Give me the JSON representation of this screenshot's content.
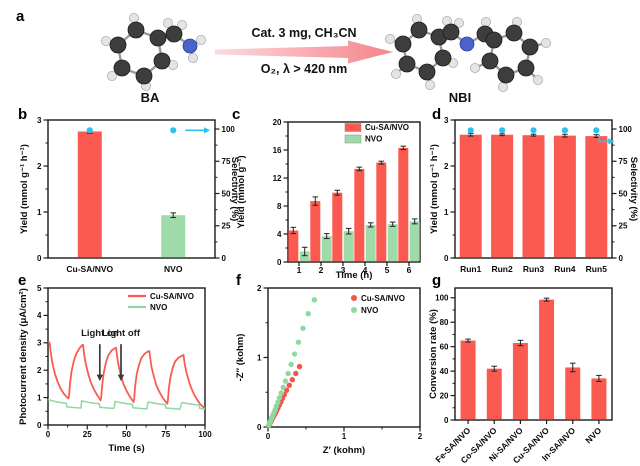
{
  "reaction": {
    "label": "a",
    "reactant_label": "BA",
    "product_label": "NBI",
    "conditions_top": "Cat. 3 mg,  CH₃CN",
    "conditions_bottom": "O₂, λ > 420 nm"
  },
  "colors": {
    "bar_red": "#fa5a50",
    "bar_green": "#9fdaa9",
    "dot_cyan": "#29c3ee",
    "line_red": "#f95b50",
    "line_green": "#90d8a0",
    "scatter_red": "#f2554b",
    "scatter_green": "#8ed8a2"
  },
  "chart_data": [
    {
      "panel": "b",
      "type": "bar",
      "categories": [
        "Cu-SA/NVO",
        "NVO"
      ],
      "series": [
        {
          "name": "Yield",
          "values": [
            2.75,
            0.93
          ],
          "errors": [
            0.04,
            0.05
          ],
          "bar_colors": [
            "#fa5a50",
            "#9fdaa9"
          ]
        }
      ],
      "dots": {
        "name": "Selectivity",
        "values": [
          99,
          99
        ],
        "color": "#29c3ee",
        "arrow": "right"
      },
      "ylabel": "Yield (mmol g⁻¹ h⁻¹)",
      "ylim": [
        0,
        3
      ],
      "yticks": [
        0,
        1,
        2,
        3
      ],
      "y2label": "Selectivity (%)",
      "y2lim": [
        0,
        107
      ],
      "y2ticks": [
        0,
        25,
        50,
        75,
        100
      ]
    },
    {
      "panel": "c",
      "type": "bar",
      "categories": [
        "1",
        "2",
        "3",
        "4",
        "5",
        "6"
      ],
      "xlabel": "Time (h)",
      "cat_ticks": true,
      "series": [
        {
          "name": "Cu-SA/NVO",
          "color": "#fa5a50",
          "values": [
            4.5,
            8.7,
            9.9,
            13.3,
            14.2,
            16.3
          ],
          "errors": [
            0.45,
            0.6,
            0.35,
            0.25,
            0.2,
            0.25
          ]
        },
        {
          "name": "NVO",
          "color": "#9fdaa9",
          "values": [
            1.5,
            3.7,
            4.4,
            5.3,
            5.4,
            5.8
          ],
          "errors": [
            0.6,
            0.35,
            0.4,
            0.3,
            0.3,
            0.35
          ]
        }
      ],
      "ylabel": "Yield (mmol g⁻¹)",
      "ylim": [
        0,
        20
      ],
      "yticks": [
        0,
        4,
        8,
        12,
        16,
        20
      ]
    },
    {
      "panel": "d",
      "type": "bar",
      "categories": [
        "Run1",
        "Run2",
        "Run3",
        "Run4",
        "Run5"
      ],
      "series": [
        {
          "name": "Yield",
          "color": "#fa5a50",
          "values": [
            2.68,
            2.68,
            2.67,
            2.66,
            2.65
          ],
          "errors": [
            0.03,
            0.02,
            0.02,
            0.03,
            0.03
          ]
        }
      ],
      "dots": {
        "name": "Selectivity",
        "values": [
          99,
          99,
          99,
          99,
          99
        ],
        "color": "#29c3ee",
        "arrow": "elbow"
      },
      "ylabel": "Yield (mmol g⁻¹ h⁻¹)",
      "ylim": [
        0,
        3
      ],
      "yticks": [
        0,
        1,
        2,
        3
      ],
      "y2label": "Selectivity (%)",
      "y2lim": [
        0,
        107
      ],
      "y2ticks": [
        0,
        25,
        50,
        75,
        100
      ]
    },
    {
      "panel": "e",
      "type": "line",
      "xlabel": "Time (s)",
      "ylabel": "Photocurrent density (μA/cm²)",
      "xlim": [
        0,
        100
      ],
      "xticks": [
        0,
        25,
        50,
        75,
        100
      ],
      "ylim": [
        0,
        5
      ],
      "yticks": [
        0,
        1,
        2,
        3,
        4,
        5
      ],
      "series": [
        {
          "name": "Cu-SA/NVO",
          "color": "#f95b50",
          "points": [
            [
              0,
              3.0
            ],
            [
              0.6,
              3.02
            ],
            [
              1,
              3.0
            ],
            [
              2,
              2.55
            ],
            [
              3,
              2.2
            ],
            [
              4.5,
              1.85
            ],
            [
              6,
              1.6
            ],
            [
              8,
              1.33
            ],
            [
              10,
              1.15
            ],
            [
              12,
              1.02
            ],
            [
              13,
              0.97
            ],
            [
              13.4,
              1.05
            ],
            [
              14,
              1.5
            ],
            [
              15,
              1.95
            ],
            [
              16.5,
              2.35
            ],
            [
              18,
              2.6
            ],
            [
              20,
              2.8
            ],
            [
              21.5,
              2.9
            ],
            [
              22.3,
              2.93
            ],
            [
              23,
              2.6
            ],
            [
              24,
              2.25
            ],
            [
              25.5,
              1.9
            ],
            [
              27,
              1.6
            ],
            [
              29,
              1.33
            ],
            [
              31,
              1.12
            ],
            [
              33,
              0.95
            ],
            [
              33.5,
              0.9
            ],
            [
              33.9,
              1.0
            ],
            [
              34.5,
              1.45
            ],
            [
              35.5,
              1.9
            ],
            [
              37,
              2.3
            ],
            [
              38.5,
              2.55
            ],
            [
              40.5,
              2.72
            ],
            [
              42.5,
              2.8
            ],
            [
              43.3,
              2.82
            ],
            [
              44,
              2.5
            ],
            [
              45,
              2.15
            ],
            [
              46.5,
              1.8
            ],
            [
              48,
              1.5
            ],
            [
              50,
              1.25
            ],
            [
              52,
              1.05
            ],
            [
              54,
              0.88
            ],
            [
              54.5,
              0.84
            ],
            [
              54.9,
              0.95
            ],
            [
              55.5,
              1.4
            ],
            [
              56.5,
              1.85
            ],
            [
              58,
              2.2
            ],
            [
              59.5,
              2.45
            ],
            [
              61.5,
              2.6
            ],
            [
              63.5,
              2.68
            ],
            [
              64.5,
              2.7
            ],
            [
              65.2,
              2.4
            ],
            [
              66,
              2.1
            ],
            [
              67.5,
              1.75
            ],
            [
              69,
              1.45
            ],
            [
              71,
              1.2
            ],
            [
              73,
              1.0
            ],
            [
              75,
              0.84
            ],
            [
              76,
              0.78
            ],
            [
              76.4,
              0.9
            ],
            [
              77,
              1.35
            ],
            [
              78,
              1.75
            ],
            [
              79.5,
              2.1
            ],
            [
              81,
              2.32
            ],
            [
              83,
              2.45
            ],
            [
              85,
              2.52
            ],
            [
              86.3,
              2.55
            ],
            [
              87,
              2.25
            ],
            [
              88,
              1.95
            ],
            [
              89.5,
              1.65
            ],
            [
              91,
              1.38
            ],
            [
              93,
              1.12
            ],
            [
              95,
              0.92
            ],
            [
              97,
              0.75
            ],
            [
              99,
              0.65
            ],
            [
              100,
              0.62
            ]
          ]
        },
        {
          "name": "NVO",
          "color": "#90d8a0",
          "points": [
            [
              0,
              0.93
            ],
            [
              3,
              0.88
            ],
            [
              6,
              0.84
            ],
            [
              9,
              0.81
            ],
            [
              11.8,
              0.79
            ],
            [
              12,
              0.66
            ],
            [
              15,
              0.645
            ],
            [
              18,
              0.63
            ],
            [
              21,
              0.62
            ],
            [
              21.4,
              0.88
            ],
            [
              24,
              0.845
            ],
            [
              27,
              0.815
            ],
            [
              30,
              0.79
            ],
            [
              32.8,
              0.775
            ],
            [
              33,
              0.645
            ],
            [
              36,
              0.63
            ],
            [
              39,
              0.615
            ],
            [
              42,
              0.605
            ],
            [
              42.8,
              0.86
            ],
            [
              45,
              0.83
            ],
            [
              48,
              0.8
            ],
            [
              51,
              0.775
            ],
            [
              53.8,
              0.76
            ],
            [
              54,
              0.63
            ],
            [
              57,
              0.615
            ],
            [
              60,
              0.6
            ],
            [
              63,
              0.59
            ],
            [
              63.8,
              0.84
            ],
            [
              66,
              0.815
            ],
            [
              69,
              0.785
            ],
            [
              72,
              0.76
            ],
            [
              74.8,
              0.745
            ],
            [
              75,
              0.62
            ],
            [
              78,
              0.605
            ],
            [
              81,
              0.59
            ],
            [
              84,
              0.58
            ],
            [
              85.3,
              0.82
            ],
            [
              88,
              0.79
            ],
            [
              91,
              0.765
            ],
            [
              94,
              0.74
            ],
            [
              96.3,
              0.73
            ],
            [
              96.5,
              0.61
            ],
            [
              98,
              0.6
            ],
            [
              100,
              0.59
            ]
          ]
        }
      ],
      "annotations": [
        {
          "text": "Light on",
          "x": 33,
          "text_y": 3.25,
          "arrow_from": 2.95,
          "arrow_to": 1.6
        },
        {
          "text": "Light off",
          "x": 46.5,
          "text_y": 3.25,
          "arrow_from": 2.95,
          "arrow_to": 1.6
        }
      ]
    },
    {
      "panel": "f",
      "type": "scatter",
      "xlabel": "Z′ (kohm)",
      "ylabel": "-Z″ (kohm)",
      "xlim": [
        0,
        2
      ],
      "xticks": [
        0,
        1,
        2
      ],
      "ylim": [
        0,
        2
      ],
      "yticks": [
        0,
        1,
        2
      ],
      "series": [
        {
          "name": "Cu-SA/NVO",
          "color": "#f2554b",
          "points": [
            [
              0.01,
              0.02
            ],
            [
              0.02,
              0.04
            ],
            [
              0.03,
              0.06
            ],
            [
              0.04,
              0.08
            ],
            [
              0.05,
              0.1
            ],
            [
              0.06,
              0.125
            ],
            [
              0.07,
              0.15
            ],
            [
              0.085,
              0.175
            ],
            [
              0.1,
              0.205
            ],
            [
              0.115,
              0.24
            ],
            [
              0.13,
              0.275
            ],
            [
              0.15,
              0.315
            ],
            [
              0.17,
              0.36
            ],
            [
              0.19,
              0.41
            ],
            [
              0.215,
              0.465
            ],
            [
              0.245,
              0.53
            ],
            [
              0.28,
              0.6
            ],
            [
              0.32,
              0.68
            ],
            [
              0.365,
              0.77
            ],
            [
              0.415,
              0.87
            ]
          ]
        },
        {
          "name": "NVO",
          "color": "#8ed8a2",
          "points": [
            [
              0.01,
              0.025
            ],
            [
              0.02,
              0.05
            ],
            [
              0.03,
              0.08
            ],
            [
              0.04,
              0.105
            ],
            [
              0.05,
              0.135
            ],
            [
              0.065,
              0.17
            ],
            [
              0.08,
              0.21
            ],
            [
              0.095,
              0.25
            ],
            [
              0.11,
              0.3
            ],
            [
              0.13,
              0.355
            ],
            [
              0.15,
              0.42
            ],
            [
              0.175,
              0.49
            ],
            [
              0.2,
              0.57
            ],
            [
              0.23,
              0.66
            ],
            [
              0.265,
              0.77
            ],
            [
              0.305,
              0.9
            ],
            [
              0.35,
              1.05
            ],
            [
              0.4,
              1.22
            ],
            [
              0.46,
              1.42
            ],
            [
              0.53,
              1.63
            ],
            [
              0.61,
              1.83
            ]
          ]
        }
      ]
    },
    {
      "panel": "g",
      "type": "bar",
      "categories": [
        "Fe-SA/NVO",
        "Co-SA/NVO",
        "Ni-SA/NVO",
        "Cu-SA/NVO",
        "In-SA/NVO",
        "NVO"
      ],
      "rotate_labels": true,
      "cat_ticks": true,
      "series": [
        {
          "name": "Conversion rate",
          "color": "#fa5a50",
          "values": [
            65,
            42,
            63,
            98.5,
            43,
            34
          ],
          "errors": [
            1.2,
            2.0,
            2.2,
            1.2,
            3.5,
            2.5
          ]
        }
      ],
      "ylabel": "Conversion rate (%)",
      "ylim": [
        0,
        108
      ],
      "yticks": [
        0,
        20,
        40,
        60,
        80,
        100
      ]
    }
  ]
}
